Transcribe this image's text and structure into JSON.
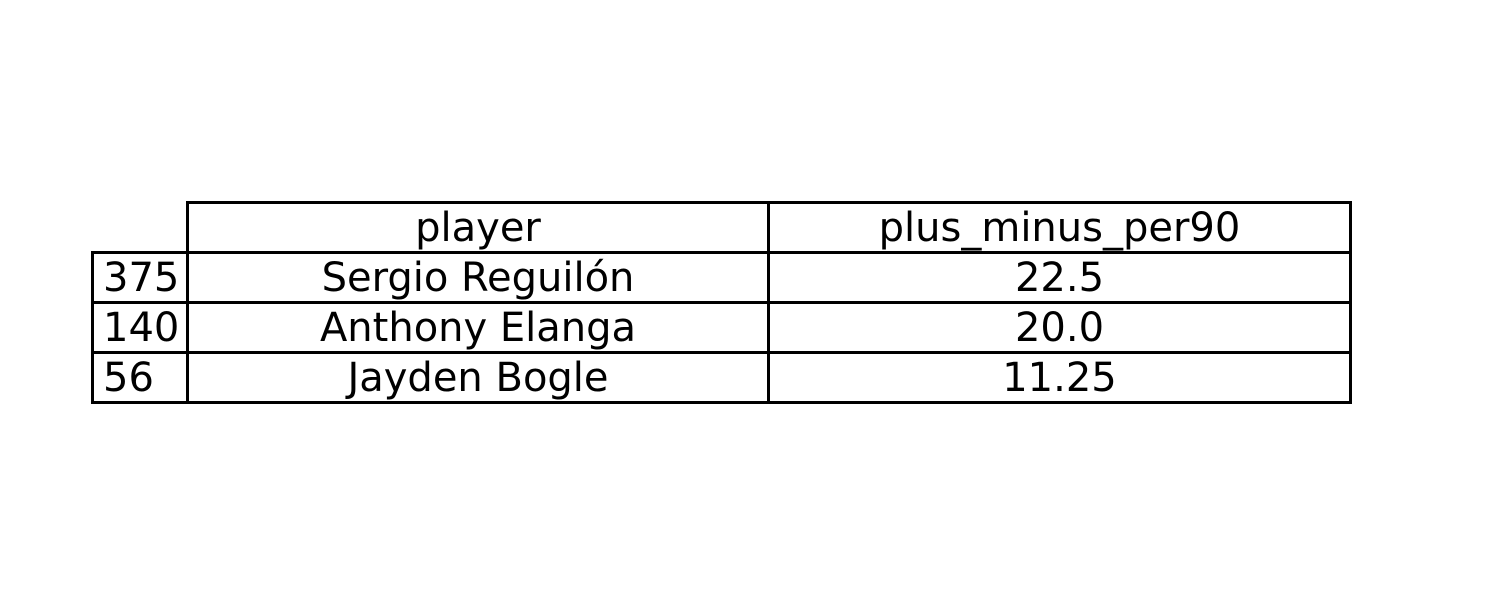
{
  "chart_data": {
    "type": "table",
    "columns": [
      "player",
      "plus_minus_per90"
    ],
    "rows": [
      {
        "index": "375",
        "player": "Sergio Reguilón",
        "plus_minus_per90": "22.5"
      },
      {
        "index": "140",
        "player": "Anthony Elanga",
        "plus_minus_per90": "20.0"
      },
      {
        "index": "56",
        "player": "Jayden Bogle",
        "plus_minus_per90": "11.25"
      }
    ]
  }
}
